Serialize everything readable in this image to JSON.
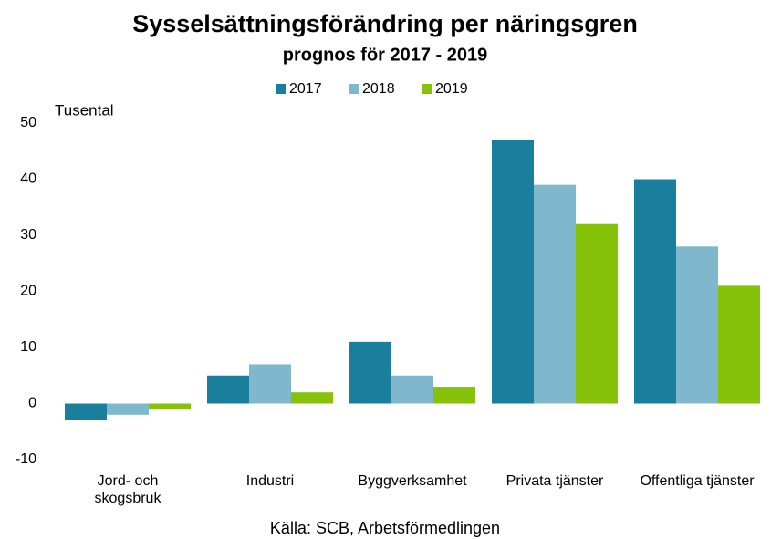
{
  "chart_data": {
    "type": "bar",
    "title": "Sysselsättningsförändring per näringsgren",
    "subtitle": "prognos för 2017 - 2019",
    "y_axis_label": "Tusental",
    "source": "Källa: SCB, Arbetsförmedlingen",
    "categories": [
      "Jord- och skogsbruk",
      "Industri",
      "Byggverksamhet",
      "Privata tjänster",
      "Offentliga tjänster"
    ],
    "series": [
      {
        "name": "2017",
        "color": "#1a7f9c",
        "values": [
          -3,
          5,
          11,
          47,
          40
        ]
      },
      {
        "name": "2018",
        "color": "#7fb8cc",
        "values": [
          -2,
          7,
          5,
          39,
          28
        ]
      },
      {
        "name": "2019",
        "color": "#86c20a",
        "values": [
          -1,
          2,
          3,
          32,
          21
        ]
      }
    ],
    "ylim": [
      -10,
      50
    ],
    "yticks": [
      -10,
      0,
      10,
      20,
      30,
      40,
      50
    ],
    "grid": false,
    "legend": "top"
  }
}
